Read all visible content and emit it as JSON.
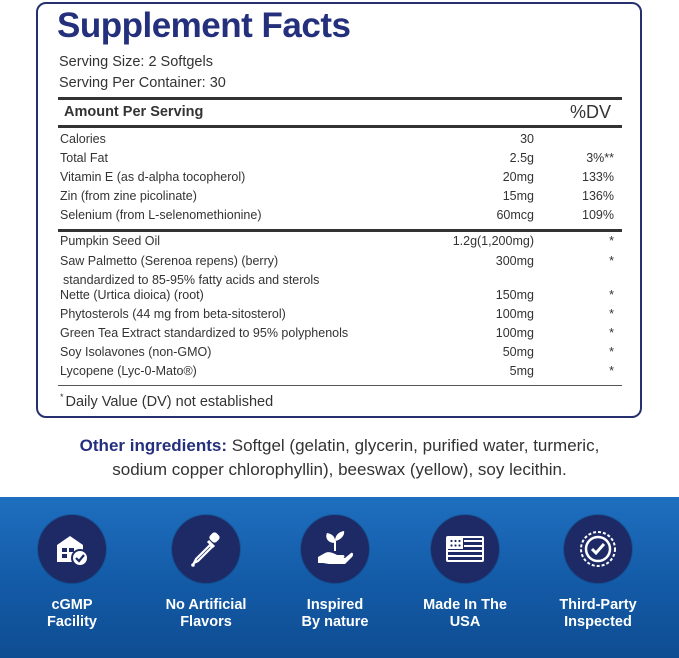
{
  "facts": {
    "title": "Supplement Facts",
    "serving_size": "Serving Size: 2 Softgels",
    "servings_per_container": "Serving Per Container: 30",
    "amount_header": "Amount Per Serving",
    "dv_header": "%DV",
    "section1": [
      {
        "name": "Calories",
        "amount": "30",
        "dv": ""
      },
      {
        "name": "Total Fat",
        "amount": "2.5g",
        "dv": "3%**"
      },
      {
        "name": "Vitamin E (as d-alpha tocopherol)",
        "amount": "20mg",
        "dv": "133%"
      },
      {
        "name": "Zin (from zine picolinate)",
        "amount": "15mg",
        "dv": "136%"
      },
      {
        "name": "Selenium (from L-selenomethionine)",
        "amount": "60mcg",
        "dv": "109%"
      }
    ],
    "section2": [
      {
        "name": "Pumpkin Seed Oil",
        "amount": "1.2g(1,200mg)",
        "dv": "*"
      },
      {
        "name": "Saw Palmetto (Serenoa repens) (berry)",
        "sub": "standardized to 85-95% fatty acids and sterols",
        "amount": "300mg",
        "dv": "*"
      },
      {
        "name": "Nette (Urtica dioica) (root)",
        "amount": "150mg",
        "dv": "*"
      },
      {
        "name": "Phytosterols (44 mg from beta-sitosterol)",
        "amount": "100mg",
        "dv": "*"
      },
      {
        "name": "Green Tea Extract standardized to 95% polyphenols",
        "amount": "100mg",
        "dv": "*"
      },
      {
        "name": "Soy Isolavones (non-GMO)",
        "amount": "50mg",
        "dv": "*"
      },
      {
        "name": "Lycopene (Lyc-0-Mato®)",
        "amount": "5mg",
        "dv": "*"
      }
    ],
    "footnote_mark": "*",
    "footnote": "Daily Value (DV) not established"
  },
  "other_ingredients": {
    "label": "Other ingredients:",
    "line1": " Softgel (gelatin, glycerin, purified water, turmeric,",
    "line2": "sodium copper chlorophyllin), beeswax (yellow), soy lecithin."
  },
  "badges": [
    {
      "label": "cGMP\nFacility",
      "icon": "facility-check-icon"
    },
    {
      "label": "No Artificial\nFlavors",
      "icon": "dropper-icon"
    },
    {
      "label": "Inspired\nBy nature",
      "icon": "hand-leaf-icon"
    },
    {
      "label": "Made In The\nUSA",
      "icon": "usa-flag-icon"
    },
    {
      "label": "Third-Party\nInspected",
      "icon": "seal-check-icon"
    }
  ],
  "colors": {
    "brand_navy": "#25307d",
    "band_blue": "#1563ae",
    "badge_circle": "#1d2a66"
  }
}
